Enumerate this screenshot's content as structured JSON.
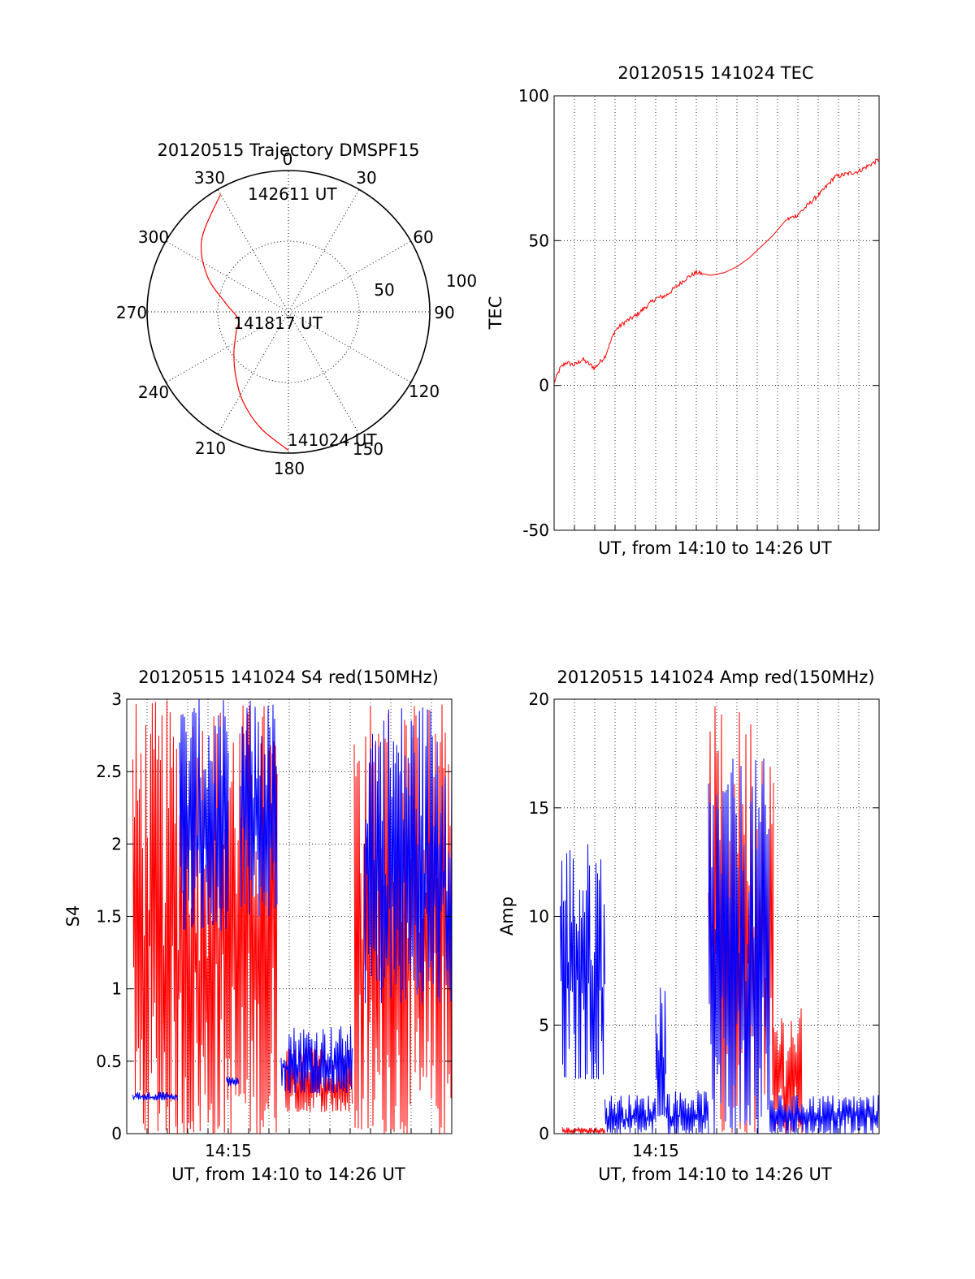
{
  "colors": {
    "red": "#ff0000",
    "blue": "#0000ff",
    "axis": "#000000",
    "grid": "#000000",
    "background": "#ffffff"
  },
  "chart_data": [
    {
      "id": "trajectory",
      "type": "scatter",
      "subtype": "polar",
      "title": "20120515 Trajectory DMSPF15",
      "azimuth_labels": [
        "0",
        "30",
        "60",
        "90",
        "120",
        "150",
        "180",
        "210",
        "240",
        "270",
        "300",
        "330"
      ],
      "radial_labels": [
        "50",
        "100"
      ],
      "radial_range": [
        0,
        100
      ],
      "grid": true,
      "series": [
        {
          "color": "#ff0000",
          "azimuth_deg": [
            180,
            193,
            206,
            218,
            232,
            248,
            262,
            278,
            294,
            310,
            330
          ],
          "radius": [
            98,
            85,
            72,
            60,
            49,
            40,
            36,
            45,
            63,
            80,
            96
          ]
        }
      ],
      "annotations": [
        {
          "text": "142611 UT",
          "azimuth_deg": 335,
          "radius": 98
        },
        {
          "text": "141817 UT",
          "azimuth_deg": 270,
          "radius": 3
        },
        {
          "text": "141024 UT",
          "azimuth_deg": 180,
          "radius": 96
        }
      ]
    },
    {
      "id": "tec",
      "type": "line",
      "title": "20120515 141024 TEC",
      "xlabel": "UT, from 14:10 to 14:26 UT",
      "ylabel": "TEC",
      "xlim": [
        0,
        16
      ],
      "ylim": [
        -50,
        100
      ],
      "yticks": [
        "100",
        "50",
        "0",
        "-50"
      ],
      "grid": true,
      "series": [
        {
          "color": "#ff0000",
          "x": [
            0,
            0.3,
            0.6,
            1.0,
            1.4,
            2.0,
            2.5,
            3.0,
            3.5,
            4.0,
            4.5,
            5.0,
            5.5,
            6.0,
            6.5,
            7.0,
            7.7,
            8.4,
            9.0,
            9.6,
            10.2,
            10.8,
            11.4,
            12.0,
            12.6,
            13.2,
            13.8,
            14.4,
            15.0,
            15.5,
            16.0
          ],
          "y": [
            1,
            6,
            8,
            7,
            9,
            6,
            10,
            19,
            22,
            24,
            27,
            30,
            31,
            34,
            37,
            39,
            38,
            39,
            41,
            44,
            48,
            52,
            57,
            59,
            63,
            67,
            72,
            73,
            74,
            76,
            78
          ]
        }
      ]
    },
    {
      "id": "s4",
      "type": "line",
      "title": "20120515 141024 S4 red(150MHz)",
      "xlabel": "UT, from 14:10 to 14:26 UT",
      "ylabel": "S4",
      "xlim": [
        0,
        16
      ],
      "ylim": [
        0,
        3
      ],
      "xticks": [
        {
          "value": 5,
          "label": "14:15"
        }
      ],
      "yticks": [
        "3",
        "2.5",
        "2",
        "1.5",
        "1",
        "0.5",
        "0"
      ],
      "grid": true,
      "segments": [
        {
          "color": "#ff0000",
          "x_start": 0.3,
          "x_end": 7.4,
          "min": 0,
          "max": 3.0
        },
        {
          "color": "#0000ff",
          "x_start": 0.3,
          "x_end": 2.5,
          "min": 0.23,
          "max": 0.29
        },
        {
          "color": "#0000ff",
          "x_start": 2.6,
          "x_end": 5.0,
          "min": 1.4,
          "max": 3.0
        },
        {
          "color": "#0000ff",
          "x_start": 4.9,
          "x_end": 5.5,
          "min": 0.33,
          "max": 0.39
        },
        {
          "color": "#0000ff",
          "x_start": 5.6,
          "x_end": 7.4,
          "min": 1.5,
          "max": 3.0
        },
        {
          "color": "#ff0000",
          "x_start": 7.8,
          "x_end": 11.1,
          "min": 0.15,
          "max": 0.6
        },
        {
          "color": "#0000ff",
          "x_start": 7.6,
          "x_end": 11.1,
          "min": 0.28,
          "max": 0.75
        },
        {
          "color": "#ff0000",
          "x_start": 11.2,
          "x_end": 16.0,
          "min": 0,
          "max": 3.0
        },
        {
          "color": "#0000ff",
          "x_start": 11.7,
          "x_end": 16.0,
          "min": 0.9,
          "max": 3.0
        }
      ]
    },
    {
      "id": "amp",
      "type": "line",
      "title": "20120515 141024 Amp red(150MHz)",
      "xlabel": "UT, from 14:10 to 14:26 UT",
      "ylabel": "Amp",
      "xlim": [
        0,
        16
      ],
      "ylim": [
        0,
        20
      ],
      "xticks": [
        {
          "value": 5,
          "label": "14:15"
        }
      ],
      "yticks": [
        "20",
        "15",
        "10",
        "5",
        "0"
      ],
      "grid": true,
      "segments": [
        {
          "color": "#ff0000",
          "x_start": 0.4,
          "x_end": 2.5,
          "min": 0,
          "max": 0.3
        },
        {
          "color": "#0000ff",
          "x_start": 0.3,
          "x_end": 2.5,
          "min": 2.5,
          "max": 13.5
        },
        {
          "color": "#0000ff",
          "x_start": 2.5,
          "x_end": 5.0,
          "min": 0,
          "max": 1.8
        },
        {
          "color": "#0000ff",
          "x_start": 5.0,
          "x_end": 5.5,
          "min": 0.8,
          "max": 7.3
        },
        {
          "color": "#0000ff",
          "x_start": 5.5,
          "x_end": 7.6,
          "min": 0,
          "max": 2.0
        },
        {
          "color": "#ff0000",
          "x_start": 7.6,
          "x_end": 10.8,
          "min": 0,
          "max": 19.7
        },
        {
          "color": "#0000ff",
          "x_start": 7.6,
          "x_end": 10.6,
          "min": 0,
          "max": 17.3
        },
        {
          "color": "#ff0000",
          "x_start": 10.8,
          "x_end": 12.2,
          "min": 0,
          "max": 5.8
        },
        {
          "color": "#0000ff",
          "x_start": 10.6,
          "x_end": 16.0,
          "min": 0,
          "max": 1.8
        }
      ]
    }
  ]
}
